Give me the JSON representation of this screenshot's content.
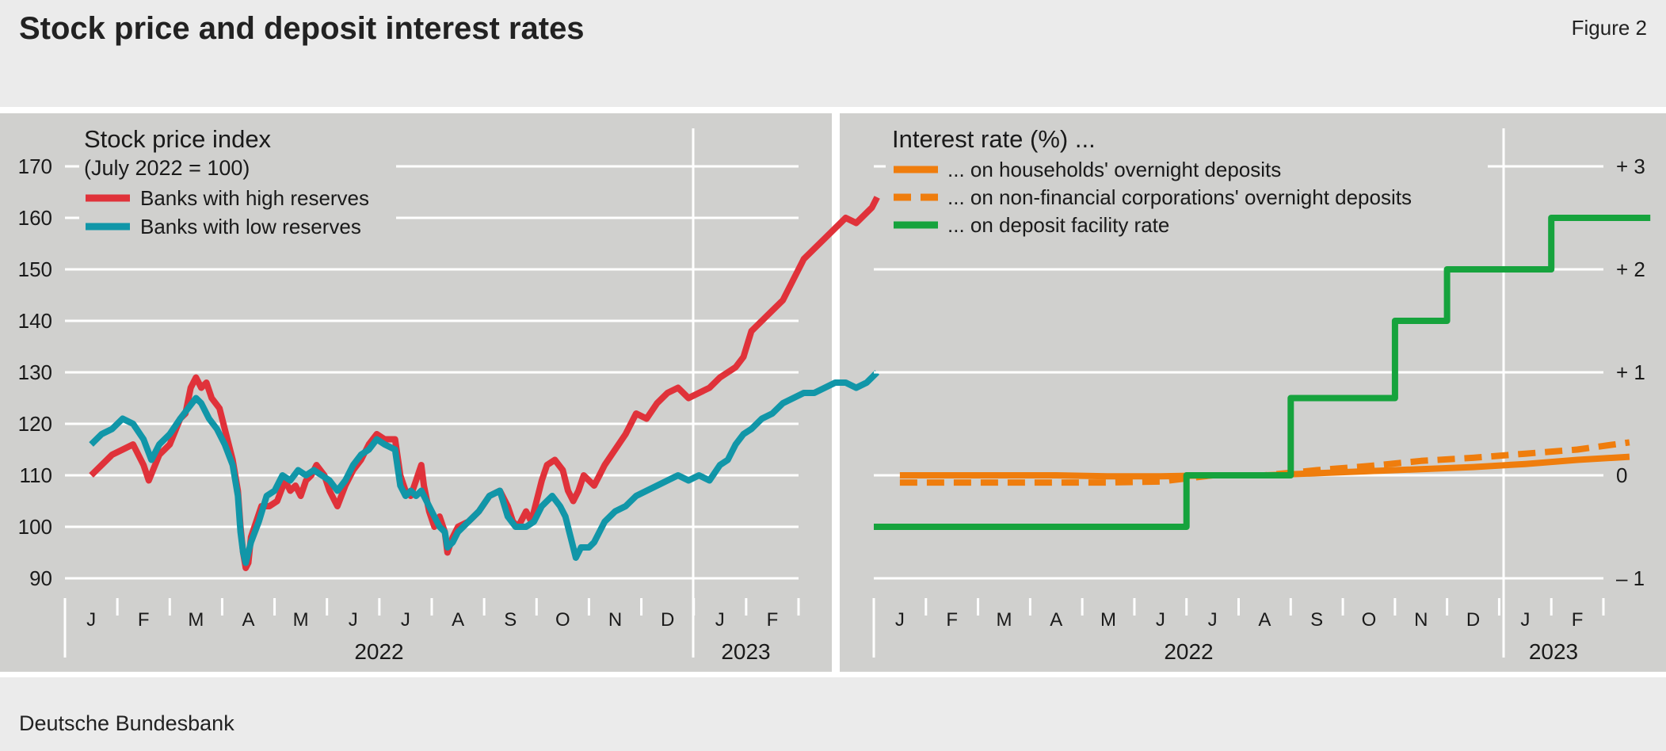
{
  "header": {
    "title": "Stock price and deposit interest rates",
    "figure_label": "Figure 2"
  },
  "footer": {
    "source": "Deutsche Bundesbank"
  },
  "colors": {
    "panel_bg": "#d0d0ce",
    "page_bg": "#ebebeb",
    "red": "#e0323a",
    "teal": "#1196a8",
    "orange": "#ef7d0d",
    "green": "#16a33d"
  },
  "chart_data": [
    {
      "type": "line",
      "title": "Stock price index",
      "subtitle": "(July 2022 = 100)",
      "yticks": [
        90,
        100,
        110,
        120,
        130,
        140,
        150,
        160,
        170
      ],
      "ylim": [
        90,
        170
      ],
      "ytick_side": "left",
      "x_month_labels": [
        "J",
        "F",
        "M",
        "A",
        "M",
        "J",
        "J",
        "A",
        "S",
        "O",
        "N",
        "D",
        "J",
        "F"
      ],
      "year_labels": [
        "2022",
        "2023"
      ],
      "legend_placement": "top-left",
      "grid": true,
      "series": [
        {
          "name": "Banks with high reserves",
          "color": "#e0323a",
          "points": [
            [
              0,
              110
            ],
            [
              0.2,
              112
            ],
            [
              0.4,
              114
            ],
            [
              0.6,
              115
            ],
            [
              0.8,
              116
            ],
            [
              1.0,
              112
            ],
            [
              1.1,
              109
            ],
            [
              1.3,
              114
            ],
            [
              1.5,
              116
            ],
            [
              1.7,
              121
            ],
            [
              1.8,
              122
            ],
            [
              1.9,
              127
            ],
            [
              2.0,
              129
            ],
            [
              2.1,
              127
            ],
            [
              2.2,
              128
            ],
            [
              2.3,
              125
            ],
            [
              2.45,
              123
            ],
            [
              2.55,
              119
            ],
            [
              2.7,
              113
            ],
            [
              2.8,
              107
            ],
            [
              2.85,
              100
            ],
            [
              2.9,
              95
            ],
            [
              2.95,
              92
            ],
            [
              3.0,
              93
            ],
            [
              3.05,
              98
            ],
            [
              3.15,
              101
            ],
            [
              3.25,
              104
            ],
            [
              3.4,
              104
            ],
            [
              3.55,
              105
            ],
            [
              3.7,
              109
            ],
            [
              3.8,
              107
            ],
            [
              3.9,
              108
            ],
            [
              4.0,
              106
            ],
            [
              4.1,
              109
            ],
            [
              4.2,
              110
            ],
            [
              4.3,
              112
            ],
            [
              4.45,
              110
            ],
            [
              4.55,
              107
            ],
            [
              4.7,
              104
            ],
            [
              4.85,
              108
            ],
            [
              5.0,
              111
            ],
            [
              5.15,
              113
            ],
            [
              5.3,
              116
            ],
            [
              5.45,
              118
            ],
            [
              5.6,
              117
            ],
            [
              5.8,
              117
            ],
            [
              5.9,
              110
            ],
            [
              6.0,
              107
            ],
            [
              6.1,
              106
            ],
            [
              6.2,
              109
            ],
            [
              6.3,
              112
            ],
            [
              6.35,
              108
            ],
            [
              6.45,
              103
            ],
            [
              6.55,
              100
            ],
            [
              6.65,
              102
            ],
            [
              6.75,
              99
            ],
            [
              6.8,
              95
            ],
            [
              6.9,
              98
            ],
            [
              7.0,
              100
            ],
            [
              7.2,
              101
            ],
            [
              7.4,
              103
            ],
            [
              7.6,
              106
            ],
            [
              7.8,
              107
            ],
            [
              7.95,
              104
            ],
            [
              8.05,
              101
            ],
            [
              8.15,
              100
            ],
            [
              8.3,
              103
            ],
            [
              8.4,
              101
            ],
            [
              8.5,
              105
            ],
            [
              8.6,
              109
            ],
            [
              8.7,
              112
            ],
            [
              8.85,
              113
            ],
            [
              9.0,
              111
            ],
            [
              9.1,
              107
            ],
            [
              9.2,
              105
            ],
            [
              9.3,
              107
            ],
            [
              9.4,
              110
            ],
            [
              9.5,
              109
            ],
            [
              9.6,
              108
            ],
            [
              9.7,
              110
            ],
            [
              9.8,
              112
            ],
            [
              10.0,
              115
            ],
            [
              10.2,
              118
            ],
            [
              10.4,
              122
            ],
            [
              10.6,
              121
            ],
            [
              10.8,
              124
            ],
            [
              11.0,
              126
            ],
            [
              11.2,
              127
            ],
            [
              11.4,
              125
            ],
            [
              11.6,
              126
            ],
            [
              11.8,
              127
            ],
            [
              12.0,
              129
            ],
            [
              12.15,
              130
            ],
            [
              12.3,
              131
            ],
            [
              12.45,
              133
            ],
            [
              12.6,
              138
            ],
            [
              12.8,
              140
            ],
            [
              13.0,
              142
            ],
            [
              13.2,
              144
            ],
            [
              13.4,
              148
            ],
            [
              13.6,
              152
            ],
            [
              13.8,
              154
            ],
            [
              14.0,
              156
            ],
            [
              14.2,
              158
            ],
            [
              14.4,
              160
            ],
            [
              14.6,
              159
            ],
            [
              14.8,
              161
            ],
            [
              14.9,
              162
            ],
            [
              15.0,
              164
            ]
          ]
        },
        {
          "name": "Banks with low reserves",
          "color": "#1196a8",
          "points": [
            [
              0,
              116
            ],
            [
              0.2,
              118
            ],
            [
              0.4,
              119
            ],
            [
              0.6,
              121
            ],
            [
              0.8,
              120
            ],
            [
              1.0,
              117
            ],
            [
              1.15,
              113
            ],
            [
              1.3,
              116
            ],
            [
              1.5,
              118
            ],
            [
              1.7,
              121
            ],
            [
              1.85,
              123
            ],
            [
              2.0,
              125
            ],
            [
              2.1,
              124
            ],
            [
              2.25,
              121
            ],
            [
              2.4,
              119
            ],
            [
              2.55,
              116
            ],
            [
              2.7,
              112
            ],
            [
              2.8,
              106
            ],
            [
              2.85,
              99
            ],
            [
              2.9,
              95
            ],
            [
              2.95,
              93
            ],
            [
              3.05,
              97
            ],
            [
              3.2,
              101
            ],
            [
              3.35,
              106
            ],
            [
              3.5,
              107
            ],
            [
              3.65,
              110
            ],
            [
              3.8,
              109
            ],
            [
              3.95,
              111
            ],
            [
              4.1,
              110
            ],
            [
              4.25,
              111
            ],
            [
              4.4,
              110
            ],
            [
              4.55,
              109
            ],
            [
              4.7,
              107
            ],
            [
              4.85,
              109
            ],
            [
              5.0,
              112
            ],
            [
              5.15,
              114
            ],
            [
              5.3,
              115
            ],
            [
              5.45,
              117
            ],
            [
              5.6,
              116
            ],
            [
              5.8,
              115
            ],
            [
              5.9,
              108
            ],
            [
              6.0,
              106
            ],
            [
              6.1,
              107
            ],
            [
              6.2,
              106
            ],
            [
              6.3,
              107
            ],
            [
              6.45,
              104
            ],
            [
              6.55,
              102
            ],
            [
              6.65,
              100
            ],
            [
              6.75,
              99
            ],
            [
              6.8,
              96
            ],
            [
              6.9,
              97
            ],
            [
              7.0,
              99
            ],
            [
              7.2,
              101
            ],
            [
              7.4,
              103
            ],
            [
              7.6,
              106
            ],
            [
              7.8,
              107
            ],
            [
              7.95,
              102
            ],
            [
              8.1,
              100
            ],
            [
              8.3,
              100
            ],
            [
              8.45,
              101
            ],
            [
              8.6,
              104
            ],
            [
              8.8,
              106
            ],
            [
              8.95,
              104
            ],
            [
              9.05,
              102
            ],
            [
              9.15,
              98
            ],
            [
              9.25,
              94
            ],
            [
              9.35,
              96
            ],
            [
              9.5,
              96
            ],
            [
              9.6,
              97
            ],
            [
              9.8,
              101
            ],
            [
              10.0,
              103
            ],
            [
              10.2,
              104
            ],
            [
              10.4,
              106
            ],
            [
              10.6,
              107
            ],
            [
              10.8,
              108
            ],
            [
              11.0,
              109
            ],
            [
              11.2,
              110
            ],
            [
              11.4,
              109
            ],
            [
              11.6,
              110
            ],
            [
              11.8,
              109
            ],
            [
              12.0,
              112
            ],
            [
              12.15,
              113
            ],
            [
              12.3,
              116
            ],
            [
              12.45,
              118
            ],
            [
              12.6,
              119
            ],
            [
              12.8,
              121
            ],
            [
              13.0,
              122
            ],
            [
              13.2,
              124
            ],
            [
              13.4,
              125
            ],
            [
              13.6,
              126
            ],
            [
              13.8,
              126
            ],
            [
              14.0,
              127
            ],
            [
              14.2,
              128
            ],
            [
              14.4,
              128
            ],
            [
              14.6,
              127
            ],
            [
              14.8,
              128
            ],
            [
              14.9,
              129
            ],
            [
              15.0,
              130
            ]
          ]
        }
      ]
    },
    {
      "type": "line",
      "title": "Interest rate (%) ...",
      "yticks": [
        -1,
        0,
        1,
        2,
        3
      ],
      "ytick_labels": [
        "– 1",
        "0",
        "+ 1",
        "+ 2",
        "+ 3"
      ],
      "ylim": [
        -1,
        3
      ],
      "ytick_side": "right",
      "x_month_labels": [
        "J",
        "F",
        "M",
        "A",
        "M",
        "J",
        "J",
        "A",
        "S",
        "O",
        "N",
        "D",
        "J",
        "F"
      ],
      "year_labels": [
        "2022",
        "2023"
      ],
      "legend_placement": "top-left",
      "grid": true,
      "series": [
        {
          "name": "... on households' overnight deposits",
          "color": "#ef7d0d",
          "dash": false,
          "points": [
            [
              0,
              0.0
            ],
            [
              1,
              0.0
            ],
            [
              2,
              0.0
            ],
            [
              3,
              0.0
            ],
            [
              4,
              -0.01
            ],
            [
              5,
              -0.01
            ],
            [
              6,
              0.0
            ],
            [
              7,
              0.0
            ],
            [
              8,
              0.02
            ],
            [
              9,
              0.04
            ],
            [
              10,
              0.06
            ],
            [
              11,
              0.08
            ],
            [
              12,
              0.11
            ],
            [
              13,
              0.15
            ],
            [
              14,
              0.18
            ]
          ]
        },
        {
          "name": "... on non-financial corporations' overnight deposits",
          "color": "#ef7d0d",
          "dash": true,
          "points": [
            [
              0,
              -0.07
            ],
            [
              1,
              -0.07
            ],
            [
              2,
              -0.07
            ],
            [
              3,
              -0.07
            ],
            [
              4,
              -0.07
            ],
            [
              5,
              -0.06
            ],
            [
              6,
              0.0
            ],
            [
              7,
              0.0
            ],
            [
              8,
              0.05
            ],
            [
              9,
              0.09
            ],
            [
              10,
              0.14
            ],
            [
              11,
              0.17
            ],
            [
              12,
              0.21
            ],
            [
              13,
              0.25
            ],
            [
              14,
              0.32
            ]
          ]
        },
        {
          "name": "... on deposit facility rate",
          "color": "#16a33d",
          "dash": false,
          "step": true,
          "points": [
            [
              -0.5,
              -0.5
            ],
            [
              5.5,
              -0.5
            ],
            [
              5.5,
              0.0
            ],
            [
              7.5,
              0.0
            ],
            [
              7.5,
              0.75
            ],
            [
              9.5,
              0.75
            ],
            [
              9.5,
              1.5
            ],
            [
              10.5,
              1.5
            ],
            [
              10.5,
              2.0
            ],
            [
              12.5,
              2.0
            ],
            [
              12.5,
              2.5
            ],
            [
              13.5,
              2.5
            ],
            [
              13.5,
              2.5
            ],
            [
              14.4,
              2.5
            ]
          ]
        }
      ]
    }
  ]
}
